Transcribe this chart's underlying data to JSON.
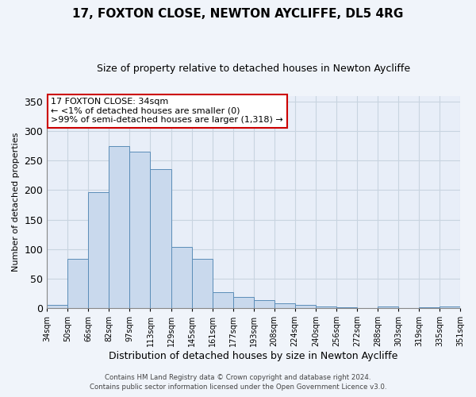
{
  "title": "17, FOXTON CLOSE, NEWTON AYCLIFFE, DL5 4RG",
  "subtitle": "Size of property relative to detached houses in Newton Aycliffe",
  "xlabel": "Distribution of detached houses by size in Newton Aycliffe",
  "ylabel": "Number of detached properties",
  "bar_values": [
    5,
    83,
    196,
    275,
    265,
    235,
    104,
    83,
    27,
    19,
    14,
    8,
    5,
    2,
    1,
    0,
    2,
    0,
    1,
    2
  ],
  "bar_labels": [
    "34sqm",
    "50sqm",
    "66sqm",
    "82sqm",
    "97sqm",
    "113sqm",
    "129sqm",
    "145sqm",
    "161sqm",
    "177sqm",
    "193sqm",
    "208sqm",
    "224sqm",
    "240sqm",
    "256sqm",
    "272sqm",
    "288sqm",
    "303sqm",
    "319sqm",
    "335sqm",
    "351sqm"
  ],
  "bar_color": "#c9d9ed",
  "bar_edge_color": "#5b8db8",
  "ylim": [
    0,
    360
  ],
  "yticks": [
    0,
    50,
    100,
    150,
    200,
    250,
    300,
    350
  ],
  "annotation_title": "17 FOXTON CLOSE: 34sqm",
  "annotation_line1": "← <1% of detached houses are smaller (0)",
  "annotation_line2": ">99% of semi-detached houses are larger (1,318) →",
  "annotation_box_color": "#ffffff",
  "annotation_box_edge": "#cc0000",
  "footer_line1": "Contains HM Land Registry data © Crown copyright and database right 2024.",
  "footer_line2": "Contains public sector information licensed under the Open Government Licence v3.0.",
  "background_color": "#f0f4fa",
  "plot_bg_color": "#e8eef8",
  "grid_color": "#c8d4e0"
}
